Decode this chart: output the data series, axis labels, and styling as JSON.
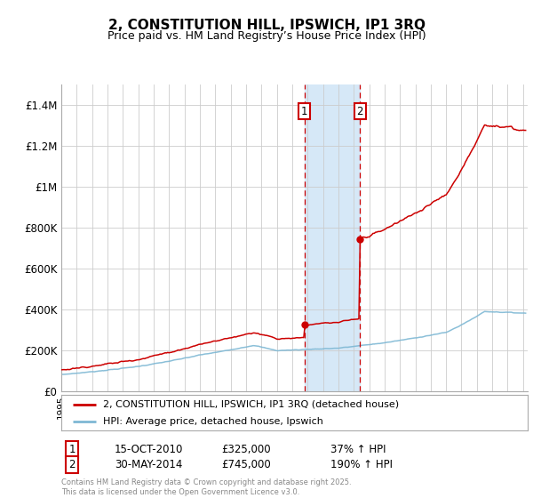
{
  "title": "2, CONSTITUTION HILL, IPSWICH, IP1 3RQ",
  "subtitle": "Price paid vs. HM Land Registry’s House Price Index (HPI)",
  "legend_line1": "2, CONSTITUTION HILL, IPSWICH, IP1 3RQ (detached house)",
  "legend_line2": "HPI: Average price, detached house, Ipswich",
  "transaction1_date": "15-OCT-2010",
  "transaction1_price": 325000,
  "transaction1_hpi_text": "37% ↑ HPI",
  "transaction1_year": 2010.79,
  "transaction2_date": "30-MAY-2014",
  "transaction2_price": 745000,
  "transaction2_hpi_text": "190% ↑ HPI",
  "transaction2_year": 2014.41,
  "red_color": "#cc0000",
  "blue_color": "#7eb8d4",
  "shade_color": "#d6e8f7",
  "grid_color": "#cccccc",
  "footer_text": "Contains HM Land Registry data © Crown copyright and database right 2025.\nThis data is licensed under the Open Government Licence v3.0.",
  "ylim": [
    0,
    1500000
  ],
  "yticks": [
    0,
    200000,
    400000,
    600000,
    800000,
    1000000,
    1200000,
    1400000
  ],
  "ytick_labels": [
    "£0",
    "£200K",
    "£400K",
    "£600K",
    "£800K",
    "£1M",
    "£1.2M",
    "£1.4M"
  ],
  "xlim_start": 1995,
  "xlim_end": 2025.3
}
